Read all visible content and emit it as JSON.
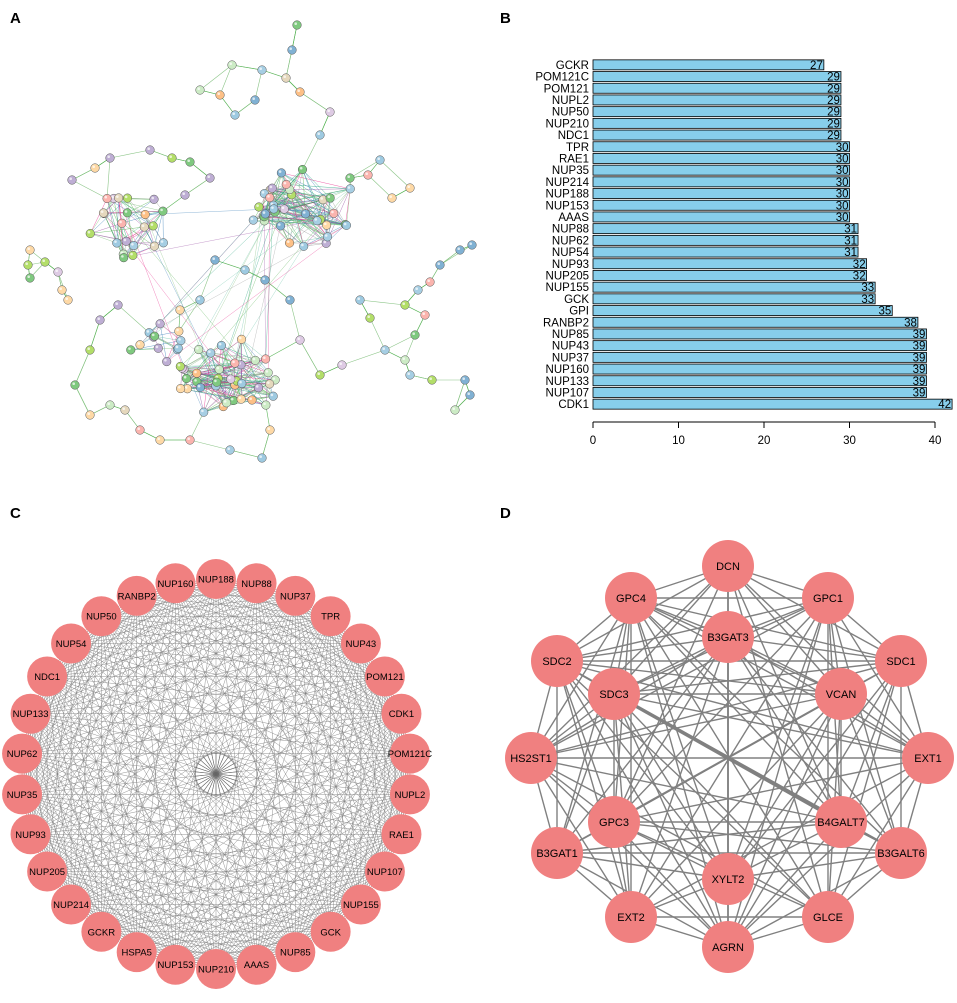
{
  "panels": {
    "a": "A",
    "b": "B",
    "c": "C",
    "d": "D"
  },
  "colors": {
    "bar": "#87ceeb",
    "node_pink": "#f08080",
    "edge": "#808080"
  },
  "chart_data": [
    {
      "type": "network",
      "panel": "A",
      "description_free": true
    },
    {
      "type": "bar",
      "orientation": "horizontal",
      "panel": "B",
      "categories": [
        "GCKR",
        "POM121C",
        "POM121",
        "NUPL2",
        "NUP50",
        "NUP210",
        "NDC1",
        "TPR",
        "RAE1",
        "NUP35",
        "NUP214",
        "NUP188",
        "NUP153",
        "AAAS",
        "NUP88",
        "NUP62",
        "NUP54",
        "NUP93",
        "NUP205",
        "NUP155",
        "GCK",
        "GPI",
        "RANBP2",
        "NUP85",
        "NUP43",
        "NUP37",
        "NUP160",
        "NUP133",
        "NUP107",
        "CDK1"
      ],
      "values": [
        27,
        29,
        29,
        29,
        29,
        29,
        29,
        30,
        30,
        30,
        30,
        30,
        30,
        30,
        31,
        31,
        31,
        32,
        32,
        33,
        33,
        35,
        38,
        39,
        39,
        39,
        39,
        39,
        39,
        42
      ],
      "xticks": [
        "0",
        "10",
        "20",
        "30",
        "40"
      ],
      "xlim": [
        0,
        42
      ],
      "grid": false
    },
    {
      "type": "network",
      "panel": "C",
      "layout": "circle",
      "nodes": [
        "NUP188",
        "NUP88",
        "NUP37",
        "TPR",
        "NUP43",
        "POM121",
        "CDK1",
        "POM121C",
        "NUPL2",
        "RAE1",
        "NUP107",
        "NUP155",
        "GCK",
        "NUP85",
        "AAAS",
        "NUP210",
        "NUP153",
        "HSPA5",
        "GCKR",
        "NUP214",
        "NUP205",
        "NUP93",
        "NUP35",
        "NUP62",
        "NUP133",
        "NDC1",
        "NUP54",
        "NUP50",
        "RANBP2",
        "NUP160"
      ],
      "center_hub": true
    },
    {
      "type": "network",
      "panel": "D",
      "nodes": [
        "DCN",
        "GPC1",
        "SDC1",
        "EXT1",
        "B3GALT6",
        "GLCE",
        "AGRN",
        "EXT2",
        "B3GAT1",
        "HS2ST1",
        "SDC2",
        "GPC4",
        "B3GAT3",
        "VCAN",
        "B4GALT7",
        "XYLT2",
        "GPC3",
        "SDC3"
      ]
    }
  ]
}
